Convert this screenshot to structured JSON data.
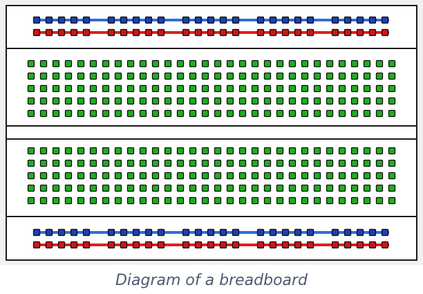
{
  "caption": "Diagram of a breadboard",
  "board": {
    "power_rail_groups": 5,
    "holes_per_power_group": 5,
    "terminal_columns": 30,
    "terminal_rows_per_half": 5,
    "colors": {
      "board_fill": "#ffffff",
      "board_border": "#1a1a1a",
      "power_rail_blue": "#2f6fd8",
      "power_rail_red": "#e01f1f",
      "power_hole_blue": "#1f3fb0",
      "power_hole_red": "#c81818",
      "terminal_hole": "#1fae1f",
      "hole_border": "#0e0e0e",
      "figure_background": "#f1f1f1",
      "caption_text": "#4a5b70"
    }
  }
}
